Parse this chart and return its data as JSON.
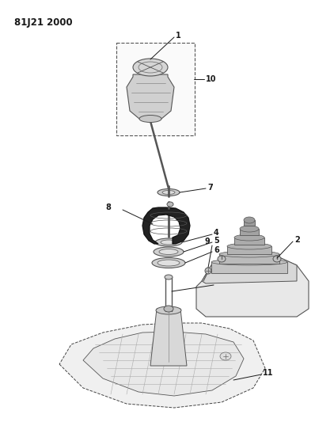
{
  "title": "81J21 2000",
  "bg_color": "#ffffff",
  "lc": "#1a1a1a",
  "fig_width": 3.98,
  "fig_height": 5.33,
  "dpi": 100,
  "label_fs": 7.0,
  "title_fs": 8.5
}
